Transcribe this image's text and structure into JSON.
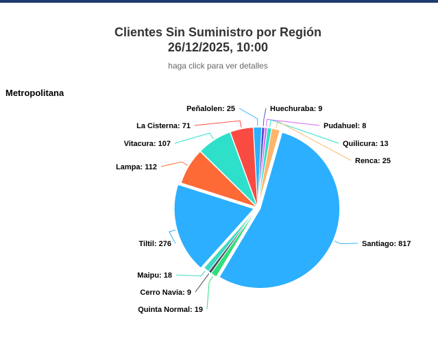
{
  "title_line1": "Clientes Sin Suministro por Región",
  "title_line2": "26/12/2025, 10:00",
  "subtitle": "haga click para ver detalles",
  "region_label": "Metropolitana",
  "chart_data": {
    "type": "pie",
    "title": "Clientes Sin Suministro por Región",
    "subtitle": "haga click para ver detalles",
    "slices": [
      {
        "name": "Santiago",
        "value": 817,
        "color": "#2caffe"
      },
      {
        "name": "Quinta Normal",
        "value": 19,
        "color": "#2ee07a"
      },
      {
        "name": "Cerro Navia",
        "value": 9,
        "color": "#3d4a5c"
      },
      {
        "name": "Maipu",
        "value": 18,
        "color": "#3ed9c2"
      },
      {
        "name": "Tiltil",
        "value": 276,
        "color": "#2caffe"
      },
      {
        "name": "Lampa",
        "value": 112,
        "color": "#fe6a35"
      },
      {
        "name": "Vitacura",
        "value": 107,
        "color": "#2ee0ca"
      },
      {
        "name": "La Cisterna",
        "value": 71,
        "color": "#fa4b42"
      },
      {
        "name": "Peñalolen",
        "value": 25,
        "color": "#2caffe"
      },
      {
        "name": "Huechuraba",
        "value": 9,
        "color": "#544fc5"
      },
      {
        "name": "Pudahuel",
        "value": 8,
        "color": "#d568fb"
      },
      {
        "name": "Quilicura",
        "value": 13,
        "color": "#2ee0ca"
      },
      {
        "name": "Renca",
        "value": 25,
        "color": "#feb56a"
      }
    ]
  }
}
